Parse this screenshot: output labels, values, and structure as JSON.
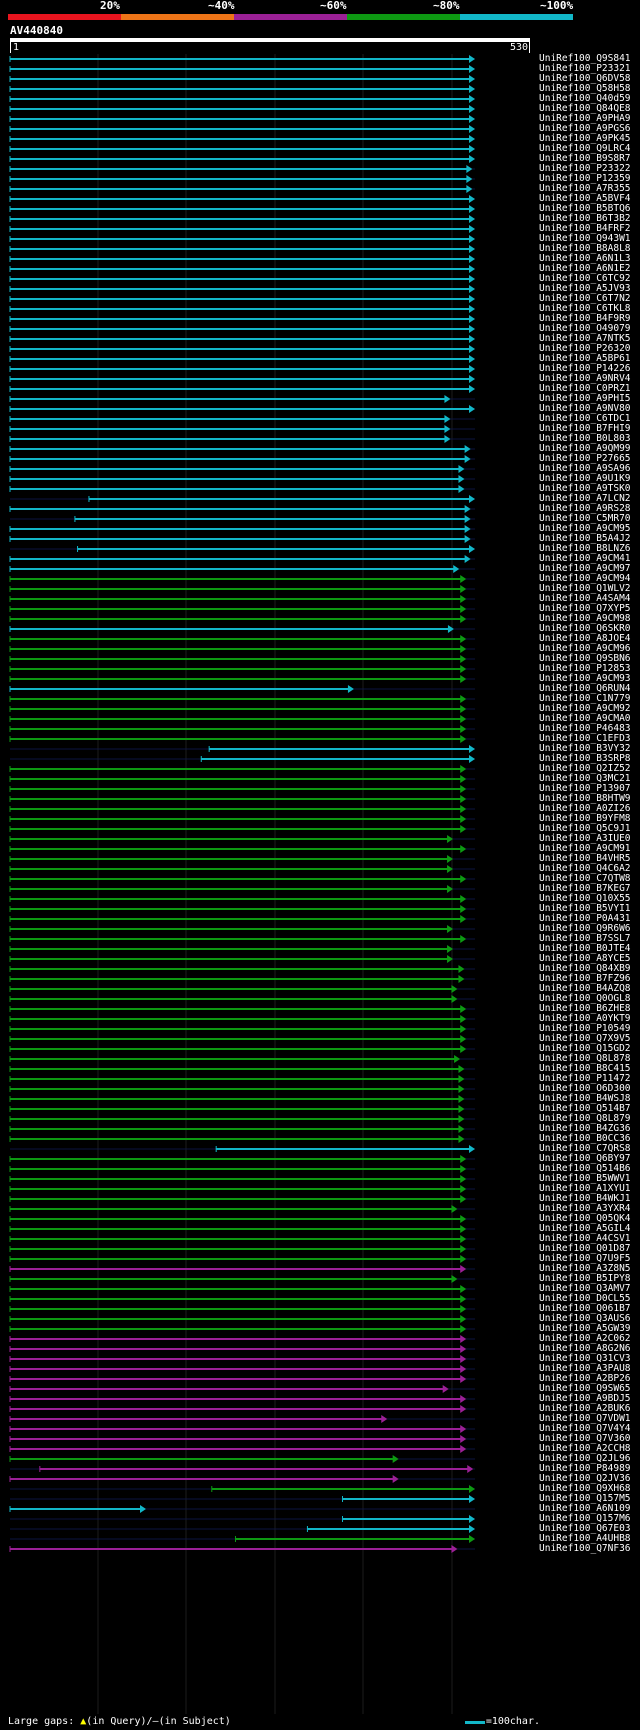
{
  "legend": {
    "markers": [
      {
        "label": "20%",
        "color": "#e8141e"
      },
      {
        "label": "~40%",
        "color": "#ee7417"
      },
      {
        "label": "~60%",
        "color": "#9b2096"
      },
      {
        "label": "~80%",
        "color": "#0d9912"
      },
      {
        "label": "~100%",
        "color": "#12b7c8"
      }
    ]
  },
  "query": {
    "id": "AV440840",
    "start": "1",
    "end": "530",
    "length": 530
  },
  "hits": [
    {
      "id": "UniRef100_Q9S841",
      "c": "cyan",
      "s": 1,
      "e": 530
    },
    {
      "id": "UniRef100_P23321",
      "c": "cyan",
      "s": 1,
      "e": 530
    },
    {
      "id": "UniRef100_Q6DV58",
      "c": "cyan",
      "s": 1,
      "e": 530
    },
    {
      "id": "UniRef100_Q58H58",
      "c": "cyan",
      "s": 1,
      "e": 530
    },
    {
      "id": "UniRef100_Q40d59",
      "c": "cyan",
      "s": 1,
      "e": 530
    },
    {
      "id": "UniRef100_Q84QE8",
      "c": "cyan",
      "s": 1,
      "e": 530
    },
    {
      "id": "UniRef100_A9PHA9",
      "c": "cyan",
      "s": 1,
      "e": 530
    },
    {
      "id": "UniRef100_A9PGS6",
      "c": "cyan",
      "s": 1,
      "e": 530
    },
    {
      "id": "UniRef100_A9PK45",
      "c": "cyan",
      "s": 1,
      "e": 530
    },
    {
      "id": "UniRef100_Q9LRC4",
      "c": "cyan",
      "s": 1,
      "e": 530
    },
    {
      "id": "UniRef100_B9S8R7",
      "c": "cyan",
      "s": 1,
      "e": 530
    },
    {
      "id": "UniRef100_P23322",
      "c": "cyan",
      "s": 1,
      "e": 527
    },
    {
      "id": "UniRef100_P12359",
      "c": "cyan",
      "s": 1,
      "e": 527
    },
    {
      "id": "UniRef100_A7R355",
      "c": "cyan",
      "s": 1,
      "e": 527
    },
    {
      "id": "UniRef100_A5BVF4",
      "c": "cyan",
      "s": 1,
      "e": 530
    },
    {
      "id": "UniRef100_B5BTQ6",
      "c": "cyan",
      "s": 1,
      "e": 530
    },
    {
      "id": "UniRef100_B6T3B2",
      "c": "cyan",
      "s": 1,
      "e": 530
    },
    {
      "id": "UniRef100_B4FRF2",
      "c": "cyan",
      "s": 1,
      "e": 530
    },
    {
      "id": "UniRef100_Q943W1",
      "c": "cyan",
      "s": 1,
      "e": 530
    },
    {
      "id": "UniRef100_B8A8L8",
      "c": "cyan",
      "s": 1,
      "e": 530
    },
    {
      "id": "UniRef100_A6N1L3",
      "c": "cyan",
      "s": 1,
      "e": 530
    },
    {
      "id": "UniRef100_A6N1E2",
      "c": "cyan",
      "s": 1,
      "e": 530
    },
    {
      "id": "UniRef100_C6TC92",
      "c": "cyan",
      "s": 1,
      "e": 530
    },
    {
      "id": "UniRef100_A5JV93",
      "c": "cyan",
      "s": 1,
      "e": 530
    },
    {
      "id": "UniRef100_C6T7N2",
      "c": "cyan",
      "s": 1,
      "e": 530
    },
    {
      "id": "UniRef100_C6TKL8",
      "c": "cyan",
      "s": 1,
      "e": 530
    },
    {
      "id": "UniRef100_B4F9R9",
      "c": "cyan",
      "s": 1,
      "e": 530
    },
    {
      "id": "UniRef100_O49079",
      "c": "cyan",
      "s": 1,
      "e": 530
    },
    {
      "id": "UniRef100_A7NTK5",
      "c": "cyan",
      "s": 1,
      "e": 530
    },
    {
      "id": "UniRef100_P26320",
      "c": "cyan",
      "s": 1,
      "e": 530
    },
    {
      "id": "UniRef100_A5BP61",
      "c": "cyan",
      "s": 1,
      "e": 530
    },
    {
      "id": "UniRef100_P14226",
      "c": "cyan",
      "s": 1,
      "e": 530
    },
    {
      "id": "UniRef100_A9NRV4",
      "c": "cyan",
      "s": 1,
      "e": 530
    },
    {
      "id": "UniRef100_C0PRZ1",
      "c": "cyan",
      "s": 1,
      "e": 530
    },
    {
      "id": "UniRef100_A9PHI5",
      "c": "cyan",
      "s": 1,
      "e": 502
    },
    {
      "id": "UniRef100_A9NV80",
      "c": "cyan",
      "s": 1,
      "e": 530
    },
    {
      "id": "UniRef100_C6TDC1",
      "c": "cyan",
      "s": 1,
      "e": 502
    },
    {
      "id": "UniRef100_B7FHI9",
      "c": "cyan",
      "s": 1,
      "e": 502
    },
    {
      "id": "UniRef100_B0L803",
      "c": "cyan",
      "s": 1,
      "e": 502
    },
    {
      "id": "UniRef100_A9QM99",
      "c": "cyan",
      "s": 1,
      "e": 525
    },
    {
      "id": "UniRef100_P27665",
      "c": "cyan",
      "s": 1,
      "e": 525
    },
    {
      "id": "UniRef100_A9SA96",
      "c": "cyan",
      "s": 1,
      "e": 518
    },
    {
      "id": "UniRef100_A9U1K9",
      "c": "cyan",
      "s": 1,
      "e": 518
    },
    {
      "id": "UniRef100_A9TSK0",
      "c": "cyan",
      "s": 1,
      "e": 518
    },
    {
      "id": "UniRef100_A7LCN2",
      "c": "cyan",
      "s": 91,
      "e": 530
    },
    {
      "id": "UniRef100_A9RS28",
      "c": "cyan",
      "s": 1,
      "e": 525
    },
    {
      "id": "UniRef100_C5MR70",
      "c": "cyan",
      "s": 75,
      "e": 525
    },
    {
      "id": "UniRef100_A9CM95",
      "c": "cyan",
      "s": 1,
      "e": 525
    },
    {
      "id": "UniRef100_B5A4J2",
      "c": "cyan",
      "s": 1,
      "e": 525
    },
    {
      "id": "UniRef100_B8LNZ6",
      "c": "cyan",
      "s": 78,
      "e": 530
    },
    {
      "id": "UniRef100_A9CM41",
      "c": "cyan",
      "s": 1,
      "e": 525
    },
    {
      "id": "UniRef100_A9CM97",
      "c": "cyan",
      "s": 1,
      "e": 512
    },
    {
      "id": "UniRef100_A9CM94",
      "c": "green",
      "s": 1,
      "e": 520
    },
    {
      "id": "UniRef100_Q1WLV2",
      "c": "green",
      "s": 1,
      "e": 520
    },
    {
      "id": "UniRef100_A4SAM4",
      "c": "green",
      "s": 1,
      "e": 520
    },
    {
      "id": "UniRef100_Q7XYP5",
      "c": "green",
      "s": 1,
      "e": 520
    },
    {
      "id": "UniRef100_A9CM98",
      "c": "green",
      "s": 1,
      "e": 520
    },
    {
      "id": "UniRef100_Q6SKR0",
      "c": "cyan",
      "s": 1,
      "e": 506
    },
    {
      "id": "UniRef100_A8JOE4",
      "c": "green",
      "s": 1,
      "e": 520
    },
    {
      "id": "UniRef100_A9CM96",
      "c": "green",
      "s": 1,
      "e": 520
    },
    {
      "id": "UniRef100_Q9SBN6",
      "c": "green",
      "s": 1,
      "e": 520
    },
    {
      "id": "UniRef100_P12853",
      "c": "green",
      "s": 1,
      "e": 520
    },
    {
      "id": "UniRef100_A9CM93",
      "c": "green",
      "s": 1,
      "e": 520
    },
    {
      "id": "UniRef100_Q6RUN4",
      "c": "cyan",
      "s": 1,
      "e": 392
    },
    {
      "id": "UniRef100_C1N779",
      "c": "green",
      "s": 1,
      "e": 520
    },
    {
      "id": "UniRef100_A9CM92",
      "c": "green",
      "s": 1,
      "e": 520
    },
    {
      "id": "UniRef100_A9CMA0",
      "c": "green",
      "s": 1,
      "e": 520
    },
    {
      "id": "UniRef100_P46483",
      "c": "green",
      "s": 1,
      "e": 520
    },
    {
      "id": "UniRef100_C1EFD3",
      "c": "green",
      "s": 1,
      "e": 520
    },
    {
      "id": "UniRef100_B3VY32",
      "c": "cyan",
      "s": 228,
      "e": 530
    },
    {
      "id": "UniRef100_B3SRP8",
      "c": "cyan",
      "s": 219,
      "e": 530
    },
    {
      "id": "UniRef100_Q2IZ52",
      "c": "green",
      "s": 1,
      "e": 520
    },
    {
      "id": "UniRef100_Q3MC21",
      "c": "green",
      "s": 1,
      "e": 520
    },
    {
      "id": "UniRef100_P13907",
      "c": "green",
      "s": 1,
      "e": 520
    },
    {
      "id": "UniRef100_B8HTW9",
      "c": "green",
      "s": 1,
      "e": 520
    },
    {
      "id": "UniRef100_A0ZI26",
      "c": "green",
      "s": 1,
      "e": 520
    },
    {
      "id": "UniRef100_B9YFM8",
      "c": "green",
      "s": 1,
      "e": 520
    },
    {
      "id": "UniRef100_Q5C9J1",
      "c": "green",
      "s": 1,
      "e": 520
    },
    {
      "id": "UniRef100_A3IUE0",
      "c": "green",
      "s": 1,
      "e": 505
    },
    {
      "id": "UniRef100_A9CM91",
      "c": "green",
      "s": 1,
      "e": 520
    },
    {
      "id": "UniRef100_B4VHR5",
      "c": "green",
      "s": 1,
      "e": 505
    },
    {
      "id": "UniRef100_Q4C6A2",
      "c": "green",
      "s": 1,
      "e": 505
    },
    {
      "id": "UniRef100_C7QTW8",
      "c": "green",
      "s": 1,
      "e": 520
    },
    {
      "id": "UniRef100_B7KEG7",
      "c": "green",
      "s": 1,
      "e": 505
    },
    {
      "id": "UniRef100_Q10X55",
      "c": "green",
      "s": 1,
      "e": 520
    },
    {
      "id": "UniRef100_B5VYI1",
      "c": "green",
      "s": 1,
      "e": 520
    },
    {
      "id": "UniRef100_P0A431",
      "c": "green",
      "s": 1,
      "e": 520
    },
    {
      "id": "UniRef100_Q9R6W6",
      "c": "green",
      "s": 1,
      "e": 505
    },
    {
      "id": "UniRef100_B7SSL7",
      "c": "green",
      "s": 1,
      "e": 520
    },
    {
      "id": "UniRef100_B0JTE4",
      "c": "green",
      "s": 1,
      "e": 505
    },
    {
      "id": "UniRef100_A8YCE5",
      "c": "green",
      "s": 1,
      "e": 505
    },
    {
      "id": "UniRef100_Q84XB9",
      "c": "green",
      "s": 1,
      "e": 518
    },
    {
      "id": "UniRef100_B7FZ96",
      "c": "green",
      "s": 1,
      "e": 518
    },
    {
      "id": "UniRef100_B4AZQ8",
      "c": "green",
      "s": 1,
      "e": 510
    },
    {
      "id": "UniRef100_Q0OGL8",
      "c": "green",
      "s": 1,
      "e": 510
    },
    {
      "id": "UniRef100_B6ZHE8",
      "c": "green",
      "s": 1,
      "e": 520
    },
    {
      "id": "UniRef100_A0YKT9",
      "c": "green",
      "s": 1,
      "e": 520
    },
    {
      "id": "UniRef100_P10549",
      "c": "green",
      "s": 1,
      "e": 520
    },
    {
      "id": "UniRef100_Q7X9V5",
      "c": "green",
      "s": 1,
      "e": 520
    },
    {
      "id": "UniRef100_Q15GD2",
      "c": "green",
      "s": 1,
      "e": 520
    },
    {
      "id": "UniRef100_Q8L878",
      "c": "green",
      "s": 1,
      "e": 513
    },
    {
      "id": "UniRef100_B8C415",
      "c": "green",
      "s": 1,
      "e": 518
    },
    {
      "id": "UniRef100_P11472",
      "c": "green",
      "s": 1,
      "e": 518
    },
    {
      "id": "UniRef100_O6D300",
      "c": "green",
      "s": 1,
      "e": 518
    },
    {
      "id": "UniRef100_B4WSJ8",
      "c": "green",
      "s": 1,
      "e": 518
    },
    {
      "id": "UniRef100_Q514B7",
      "c": "green",
      "s": 1,
      "e": 518
    },
    {
      "id": "UniRef100_Q8L879",
      "c": "green",
      "s": 1,
      "e": 518
    },
    {
      "id": "UniRef100_B4ZG36",
      "c": "green",
      "s": 1,
      "e": 518
    },
    {
      "id": "UniRef100_B0CC36",
      "c": "green",
      "s": 1,
      "e": 518
    },
    {
      "id": "UniRef100_C7QRS8",
      "c": "cyan",
      "s": 236,
      "e": 530
    },
    {
      "id": "UniRef100_Q6BY97",
      "c": "green",
      "s": 1,
      "e": 520
    },
    {
      "id": "UniRef100_Q514B6",
      "c": "green",
      "s": 1,
      "e": 520
    },
    {
      "id": "UniRef100_B5WWV1",
      "c": "green",
      "s": 1,
      "e": 520
    },
    {
      "id": "UniRef100_A1XYU1",
      "c": "green",
      "s": 1,
      "e": 520
    },
    {
      "id": "UniRef100_B4WKJ1",
      "c": "green",
      "s": 1,
      "e": 520
    },
    {
      "id": "UniRef100_A3YXR4",
      "c": "green",
      "s": 1,
      "e": 510
    },
    {
      "id": "UniRef100_Q05QK4",
      "c": "green",
      "s": 1,
      "e": 520
    },
    {
      "id": "UniRef100_A5GIL4",
      "c": "green",
      "s": 1,
      "e": 520
    },
    {
      "id": "UniRef100_A4CSV1",
      "c": "green",
      "s": 1,
      "e": 520
    },
    {
      "id": "UniRef100_Q01D87",
      "c": "green",
      "s": 1,
      "e": 520
    },
    {
      "id": "UniRef100_Q7U9F5",
      "c": "green",
      "s": 1,
      "e": 520
    },
    {
      "id": "UniRef100_A3Z8N5",
      "c": "magenta",
      "s": 1,
      "e": 520
    },
    {
      "id": "UniRef100_B5IPY8",
      "c": "green",
      "s": 1,
      "e": 510
    },
    {
      "id": "UniRef100_Q3AMV7",
      "c": "green",
      "s": 1,
      "e": 520
    },
    {
      "id": "UniRef100_D0CL55",
      "c": "green",
      "s": 1,
      "e": 520
    },
    {
      "id": "UniRef100_Q061B7",
      "c": "green",
      "s": 1,
      "e": 520
    },
    {
      "id": "UniRef100_Q3AUS6",
      "c": "green",
      "s": 1,
      "e": 520
    },
    {
      "id": "UniRef100_A5GW39",
      "c": "green",
      "s": 1,
      "e": 520
    },
    {
      "id": "UniRef100_A2C062",
      "c": "magenta",
      "s": 1,
      "e": 520
    },
    {
      "id": "UniRef100_A8G2N6",
      "c": "magenta",
      "s": 1,
      "e": 520
    },
    {
      "id": "UniRef100_Q31CV3",
      "c": "magenta",
      "s": 1,
      "e": 520
    },
    {
      "id": "UniRef100_A3PAU8",
      "c": "magenta",
      "s": 1,
      "e": 520
    },
    {
      "id": "UniRef100_A2BP26",
      "c": "magenta",
      "s": 1,
      "e": 520
    },
    {
      "id": "UniRef100_Q9SW65",
      "c": "magenta",
      "s": 1,
      "e": 500
    },
    {
      "id": "UniRef100_A9BDJ5",
      "c": "magenta",
      "s": 1,
      "e": 520
    },
    {
      "id": "UniRef100_A2BUK6",
      "c": "magenta",
      "s": 1,
      "e": 520
    },
    {
      "id": "UniRef100_Q7VDW1",
      "c": "magenta",
      "s": 1,
      "e": 430
    },
    {
      "id": "UniRef100_Q7V4Y4",
      "c": "magenta",
      "s": 1,
      "e": 520
    },
    {
      "id": "UniRef100_Q7V360",
      "c": "magenta",
      "s": 1,
      "e": 520
    },
    {
      "id": "UniRef100_A2CCH8",
      "c": "magenta",
      "s": 1,
      "e": 520
    },
    {
      "id": "UniRef100_Q2JL96",
      "c": "green",
      "s": 1,
      "e": 443
    },
    {
      "id": "UniRef100_P84989",
      "c": "magenta",
      "s": 35,
      "e": 528
    },
    {
      "id": "UniRef100_Q2JV36",
      "c": "magenta",
      "s": 1,
      "e": 443
    },
    {
      "id": "UniRef100_Q9XH68",
      "c": "green",
      "s": 231,
      "e": 530
    },
    {
      "id": "UniRef100_Q157M5",
      "c": "cyan",
      "s": 380,
      "e": 530
    },
    {
      "id": "UniRef100_A6N109",
      "c": "cyan",
      "s": 1,
      "e": 155
    },
    {
      "id": "UniRef100_Q157M6",
      "c": "cyan",
      "s": 380,
      "e": 530
    },
    {
      "id": "UniRef100_Q67E03",
      "c": "cyan",
      "s": 340,
      "e": 530
    },
    {
      "id": "UniRef100_A4UHB8",
      "c": "green",
      "s": 258,
      "e": 530
    },
    {
      "id": "UniRef100_Q7NF36",
      "c": "magenta",
      "s": 1,
      "e": 510
    }
  ],
  "footer": {
    "gaps_label": "Large gaps:",
    "query_gap_symbol": "▲",
    "query_gap_text": "(in Query)/",
    "subject_gap_symbol": "–",
    "subject_gap_text": "(in Subject)",
    "scale_label": "=100char."
  },
  "colors": {
    "cyan": "#12b7c8",
    "green": "#0d9912",
    "magenta": "#9b2096",
    "gap": "#ffff00"
  }
}
